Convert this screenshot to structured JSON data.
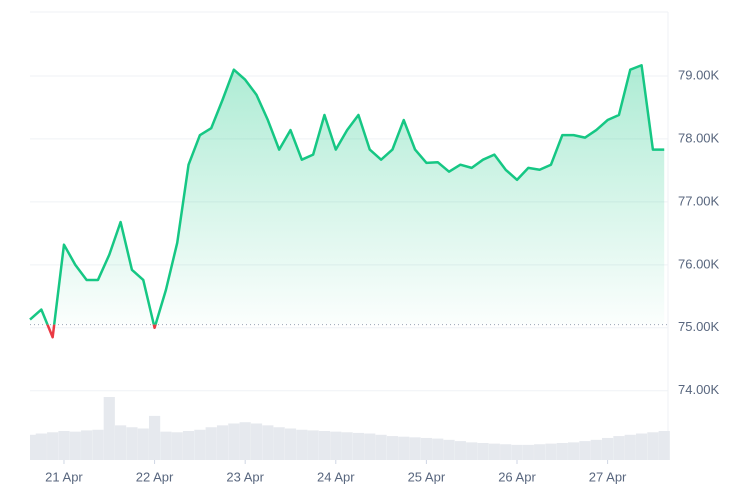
{
  "chart_data": {
    "type": "line",
    "x": [
      0,
      3,
      6,
      9,
      12,
      15,
      18,
      21,
      24,
      27,
      30,
      33,
      36,
      39,
      42,
      45,
      48,
      51,
      54,
      57,
      60,
      63,
      66,
      69,
      72,
      75,
      78,
      81,
      84,
      87,
      90,
      93,
      96,
      99,
      102,
      105,
      108,
      111,
      114,
      117,
      120,
      123,
      126,
      129,
      132,
      135,
      138,
      141,
      144,
      147,
      150,
      153,
      156,
      159,
      162,
      165,
      168
    ],
    "values": [
      75130,
      75290,
      74850,
      76320,
      76000,
      75760,
      75760,
      76160,
      76680,
      75920,
      75760,
      75000,
      75600,
      76350,
      77590,
      78060,
      78170,
      78620,
      79100,
      78940,
      78700,
      78300,
      77830,
      78140,
      77670,
      77750,
      78380,
      77830,
      78140,
      78380,
      77830,
      77670,
      77830,
      78300,
      77830,
      77620,
      77630,
      77480,
      77590,
      77540,
      77670,
      77750,
      77510,
      77350,
      77540,
      77510,
      77590,
      78060,
      78060,
      78020,
      78140,
      78300,
      78380,
      79100,
      79170,
      77830,
      77830
    ],
    "color": "#16c784",
    "below_color": "#ea3943",
    "baseline": 75050,
    "volume": [
      40,
      42,
      44,
      46,
      45,
      47,
      48,
      100,
      55,
      52,
      50,
      70,
      45,
      44,
      46,
      48,
      52,
      55,
      58,
      60,
      58,
      55,
      52,
      50,
      48,
      47,
      46,
      45,
      44,
      43,
      42,
      40,
      38,
      37,
      36,
      35,
      34,
      32,
      30,
      28,
      27,
      26,
      25,
      24,
      24,
      25,
      26,
      27,
      28,
      30,
      32,
      35,
      38,
      40,
      42,
      44,
      46
    ],
    "volume_color": "#e6e9ee",
    "y2lim": [
      0,
      100
    ],
    "xlim": [
      0,
      169
    ],
    "ylim": [
      72900,
      80000
    ],
    "xticks": [
      {
        "value": 9,
        "label": "21 Apr"
      },
      {
        "value": 33,
        "label": "22 Apr"
      },
      {
        "value": 57,
        "label": "23 Apr"
      },
      {
        "value": 81,
        "label": "24 Apr"
      },
      {
        "value": 105,
        "label": "25 Apr"
      },
      {
        "value": 129,
        "label": "26 Apr"
      },
      {
        "value": 153,
        "label": "27 Apr"
      }
    ],
    "yticks": [
      {
        "value": 74000,
        "label": "74.00K"
      },
      {
        "value": 75000,
        "label": "75.00K"
      },
      {
        "value": 76000,
        "label": "76.00K"
      },
      {
        "value": 77000,
        "label": "77.00K"
      },
      {
        "value": 78000,
        "label": "78.00K"
      },
      {
        "value": 79000,
        "label": "79.00K"
      }
    ],
    "grid": true
  }
}
